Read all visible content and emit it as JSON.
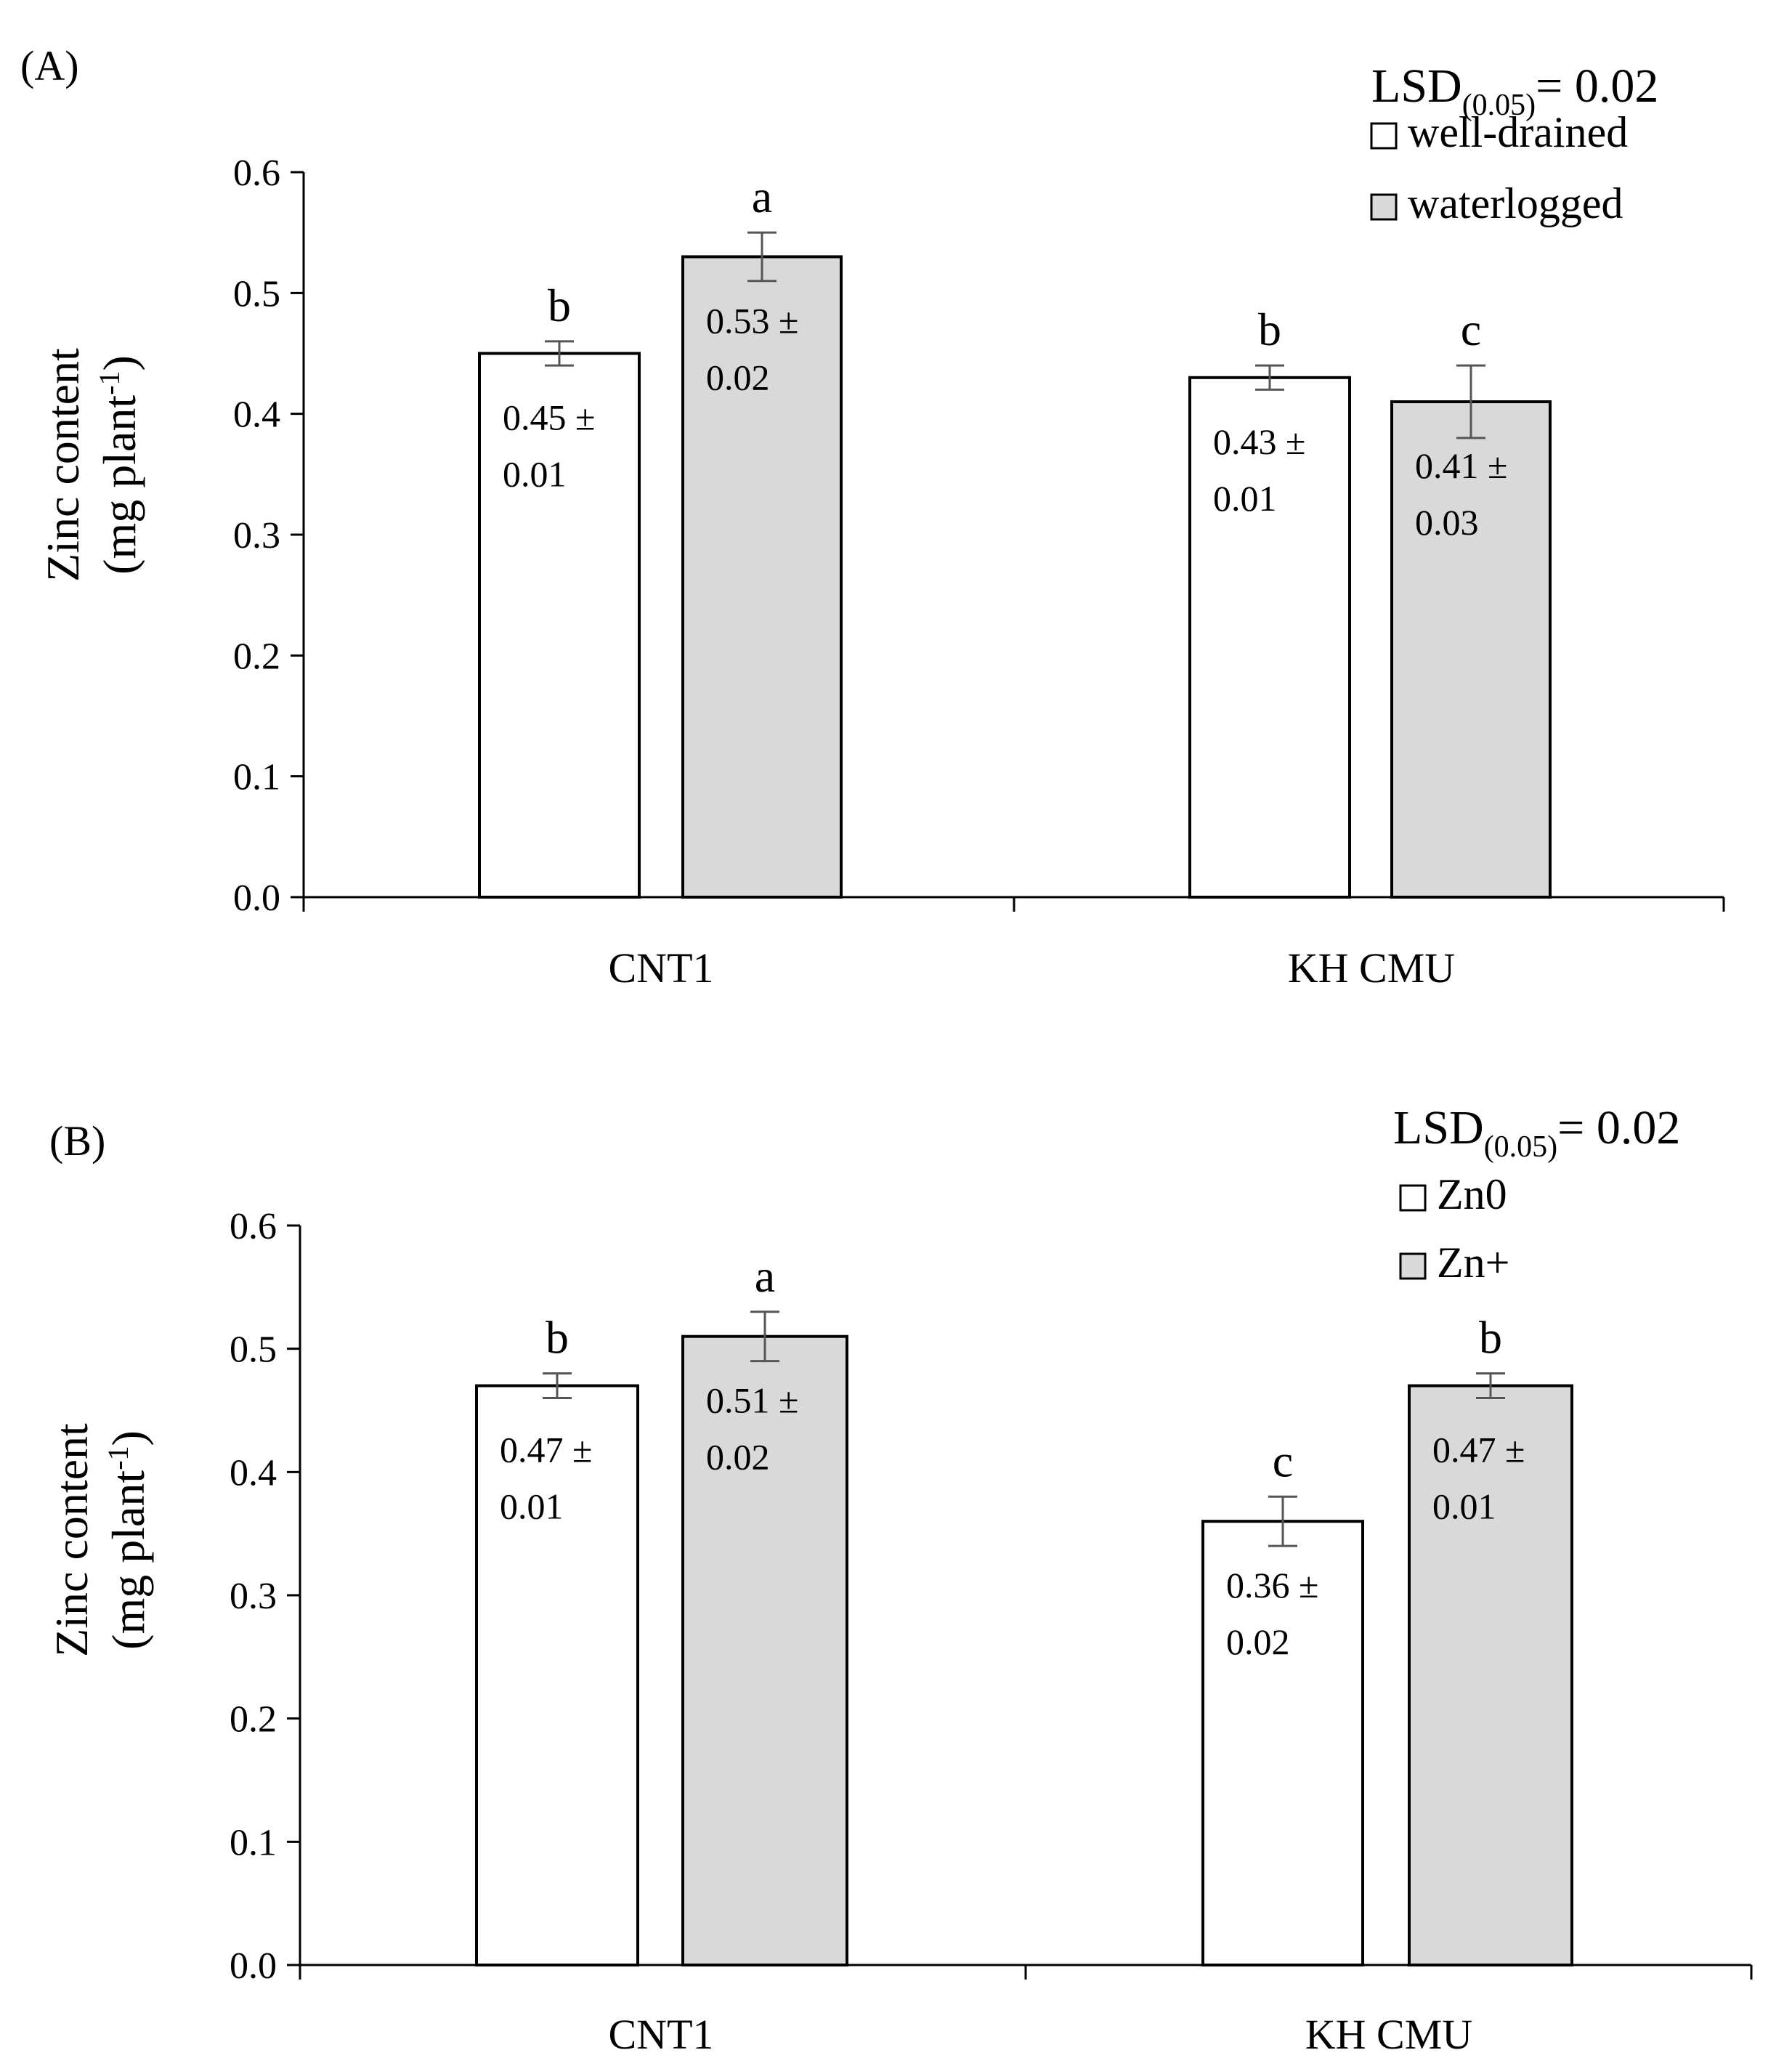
{
  "chart_data": [
    {
      "type": "bar",
      "panel_label": "(A)",
      "ylabel": "Zinc content",
      "ylabel_units": "(mg plant",
      "ylabel_sup": "-1",
      "ylabel_close": ")",
      "ylim": [
        0,
        0.6
      ],
      "yticks": [
        "0.0",
        "0.1",
        "0.2",
        "0.3",
        "0.4",
        "0.5",
        "0.6"
      ],
      "categories": [
        "CNT1",
        "KH CMU"
      ],
      "lsd": {
        "prefix": "LSD",
        "sub": "(0.05)",
        "suffix": "= 0.02"
      },
      "series": [
        {
          "name": "well-drained",
          "color": "#ffffff",
          "values": [
            0.45,
            0.43
          ],
          "errors": [
            0.01,
            0.01
          ],
          "letters": [
            "b",
            "b"
          ],
          "label_line1": [
            "0.45 ±",
            "0.43 ±"
          ],
          "label_line2": [
            "0.01",
            "0.01"
          ]
        },
        {
          "name": "waterlogged",
          "color": "#d9d9d9",
          "values": [
            0.53,
            0.41
          ],
          "errors": [
            0.02,
            0.03
          ],
          "letters": [
            "a",
            "c"
          ],
          "label_line1": [
            "0.53 ±",
            "0.41 ±"
          ],
          "label_line2": [
            "0.02",
            "0.03"
          ]
        }
      ]
    },
    {
      "type": "bar",
      "panel_label": "(B)",
      "ylabel": "Zinc content",
      "ylabel_units": "(mg plant",
      "ylabel_sup": "-1",
      "ylabel_close": ")",
      "ylim": [
        0,
        0.6
      ],
      "yticks": [
        "0.0",
        "0.1",
        "0.2",
        "0.3",
        "0.4",
        "0.5",
        "0.6"
      ],
      "categories": [
        "CNT1",
        "KH CMU"
      ],
      "lsd": {
        "prefix": "LSD",
        "sub": "(0.05)",
        "suffix": "= 0.02"
      },
      "series": [
        {
          "name": "Zn0",
          "color": "#ffffff",
          "values": [
            0.47,
            0.36
          ],
          "errors": [
            0.01,
            0.02
          ],
          "letters": [
            "b",
            "c"
          ],
          "label_line1": [
            "0.47 ±",
            "0.36 ±"
          ],
          "label_line2": [
            "0.01",
            "0.02"
          ]
        },
        {
          "name": "Zn+",
          "color": "#d9d9d9",
          "values": [
            0.51,
            0.47
          ],
          "errors": [
            0.02,
            0.01
          ],
          "letters": [
            "a",
            "b"
          ],
          "label_line1": [
            "0.51 ±",
            "0.47 ±"
          ],
          "label_line2": [
            "0.02",
            "0.01"
          ]
        }
      ]
    }
  ]
}
